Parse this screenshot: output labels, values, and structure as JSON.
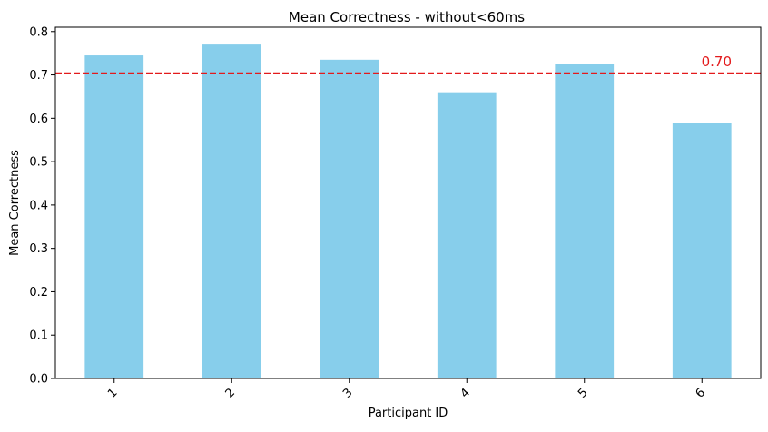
{
  "chart_data": {
    "type": "bar",
    "title": "Mean Correctness - without<60ms",
    "xlabel": "Participant ID",
    "ylabel": "Mean Correctness",
    "categories": [
      "1",
      "2",
      "3",
      "4",
      "5",
      "6"
    ],
    "values": [
      0.745,
      0.77,
      0.735,
      0.66,
      0.725,
      0.59
    ],
    "ylim": [
      0,
      0.81
    ],
    "yticks": [
      0.0,
      0.1,
      0.2,
      0.3,
      0.4,
      0.5,
      0.6,
      0.7,
      0.8
    ],
    "ytick_labels": [
      "0.0",
      "0.1",
      "0.2",
      "0.3",
      "0.4",
      "0.5",
      "0.6",
      "0.7",
      "0.8"
    ],
    "bar_color": "#87ceeb",
    "grid": false,
    "xtick_rotation": 45,
    "reference_line": {
      "value": 0.704,
      "label": "0.70",
      "color": "#e31a1c",
      "style": "dashed"
    }
  }
}
